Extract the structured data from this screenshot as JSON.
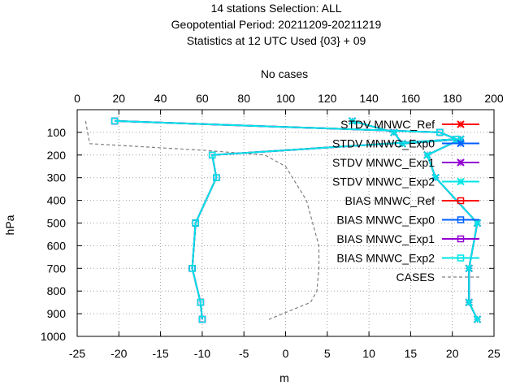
{
  "chart_data": {
    "type": "line",
    "title": [
      "14 stations Selection: ALL",
      "Geopotential  Period: 20211209-20211219",
      "Statistics at 12 UTC  Used {03} + 09"
    ],
    "xlabel": "m",
    "x2label": "No cases",
    "ylabel": "hPa",
    "xlim": [
      -25,
      25
    ],
    "x2lim": [
      0,
      200
    ],
    "ylim": [
      1000,
      0
    ],
    "xticks": [
      -25,
      -20,
      -15,
      -10,
      -5,
      0,
      5,
      10,
      15,
      20,
      25
    ],
    "x2ticks": [
      0,
      20,
      40,
      60,
      80,
      100,
      120,
      140,
      160,
      180,
      200
    ],
    "yticks": [
      100,
      200,
      300,
      400,
      500,
      600,
      700,
      800,
      900,
      1000
    ],
    "grid": true,
    "legend_position": "top-right",
    "series": [
      {
        "name": "STDV MNWC_Ref",
        "color": "#ff0000",
        "marker": "x",
        "axis": "x",
        "points": [
          [
            8,
            50
          ],
          [
            13,
            100
          ],
          [
            14,
            150
          ],
          [
            21,
            130
          ],
          [
            17,
            200
          ],
          [
            18,
            300
          ],
          [
            23,
            500
          ],
          [
            22,
            700
          ],
          [
            22,
            850
          ],
          [
            23,
            925
          ]
        ]
      },
      {
        "name": "STDV MNWC_Exp0",
        "color": "#0060ff",
        "marker": "x",
        "axis": "x",
        "points": [
          [
            8,
            50
          ],
          [
            13,
            100
          ],
          [
            14,
            150
          ],
          [
            21,
            130
          ],
          [
            17,
            200
          ],
          [
            18,
            300
          ],
          [
            23,
            500
          ],
          [
            22,
            700
          ],
          [
            22,
            850
          ],
          [
            23,
            925
          ]
        ]
      },
      {
        "name": "STDV MNWC_Exp1",
        "color": "#9400d3",
        "marker": "x",
        "axis": "x",
        "points": [
          [
            8,
            50
          ],
          [
            13,
            100
          ],
          [
            14,
            150
          ],
          [
            21,
            130
          ],
          [
            17,
            200
          ],
          [
            18,
            300
          ],
          [
            23,
            500
          ],
          [
            22,
            700
          ],
          [
            22,
            850
          ],
          [
            23,
            925
          ]
        ]
      },
      {
        "name": "STDV MNWC_Exp2",
        "color": "#00e5e5",
        "marker": "x",
        "axis": "x",
        "points": [
          [
            8,
            50
          ],
          [
            13,
            100
          ],
          [
            14,
            150
          ],
          [
            21,
            130
          ],
          [
            17,
            200
          ],
          [
            18,
            300
          ],
          [
            23,
            500
          ],
          [
            22,
            700
          ],
          [
            22,
            850
          ],
          [
            23,
            925
          ]
        ]
      },
      {
        "name": "BIAS MNWC_Ref",
        "color": "#ff0000",
        "marker": "square",
        "axis": "x",
        "points": [
          [
            -20.5,
            50
          ],
          [
            18.5,
            100
          ],
          [
            20.5,
            130
          ],
          [
            -8.8,
            200
          ],
          [
            -8.3,
            300
          ],
          [
            -10.8,
            500
          ],
          [
            -11.2,
            700
          ],
          [
            -10.2,
            850
          ],
          [
            -10.0,
            925
          ]
        ]
      },
      {
        "name": "BIAS MNWC_Exp0",
        "color": "#0060ff",
        "marker": "square",
        "axis": "x",
        "points": [
          [
            -20.5,
            50
          ],
          [
            18.5,
            100
          ],
          [
            20.5,
            130
          ],
          [
            -8.8,
            200
          ],
          [
            -8.3,
            300
          ],
          [
            -10.8,
            500
          ],
          [
            -11.2,
            700
          ],
          [
            -10.2,
            850
          ],
          [
            -10.0,
            925
          ]
        ]
      },
      {
        "name": "BIAS MNWC_Exp1",
        "color": "#9400d3",
        "marker": "square",
        "axis": "x",
        "points": [
          [
            -20.5,
            50
          ],
          [
            18.5,
            100
          ],
          [
            20.5,
            130
          ],
          [
            -8.8,
            200
          ],
          [
            -8.3,
            300
          ],
          [
            -10.8,
            500
          ],
          [
            -11.2,
            700
          ],
          [
            -10.2,
            850
          ],
          [
            -10.0,
            925
          ]
        ]
      },
      {
        "name": "BIAS MNWC_Exp2",
        "color": "#00e5e5",
        "marker": "square",
        "axis": "x",
        "points": [
          [
            -20.5,
            50
          ],
          [
            18.5,
            100
          ],
          [
            20.5,
            130
          ],
          [
            -8.8,
            200
          ],
          [
            -8.3,
            300
          ],
          [
            -10.8,
            500
          ],
          [
            -11.2,
            700
          ],
          [
            -10.2,
            850
          ],
          [
            -10.0,
            925
          ]
        ]
      },
      {
        "name": "CASES",
        "color": "#808080",
        "dash": true,
        "axis": "x2",
        "points": [
          [
            4,
            50
          ],
          [
            6,
            150
          ],
          [
            62,
            180
          ],
          [
            90,
            200
          ],
          [
            100,
            250
          ],
          [
            110,
            400
          ],
          [
            113,
            500
          ],
          [
            116,
            600
          ],
          [
            116,
            700
          ],
          [
            115,
            800
          ],
          [
            112,
            850
          ],
          [
            92,
            925
          ]
        ]
      }
    ]
  }
}
